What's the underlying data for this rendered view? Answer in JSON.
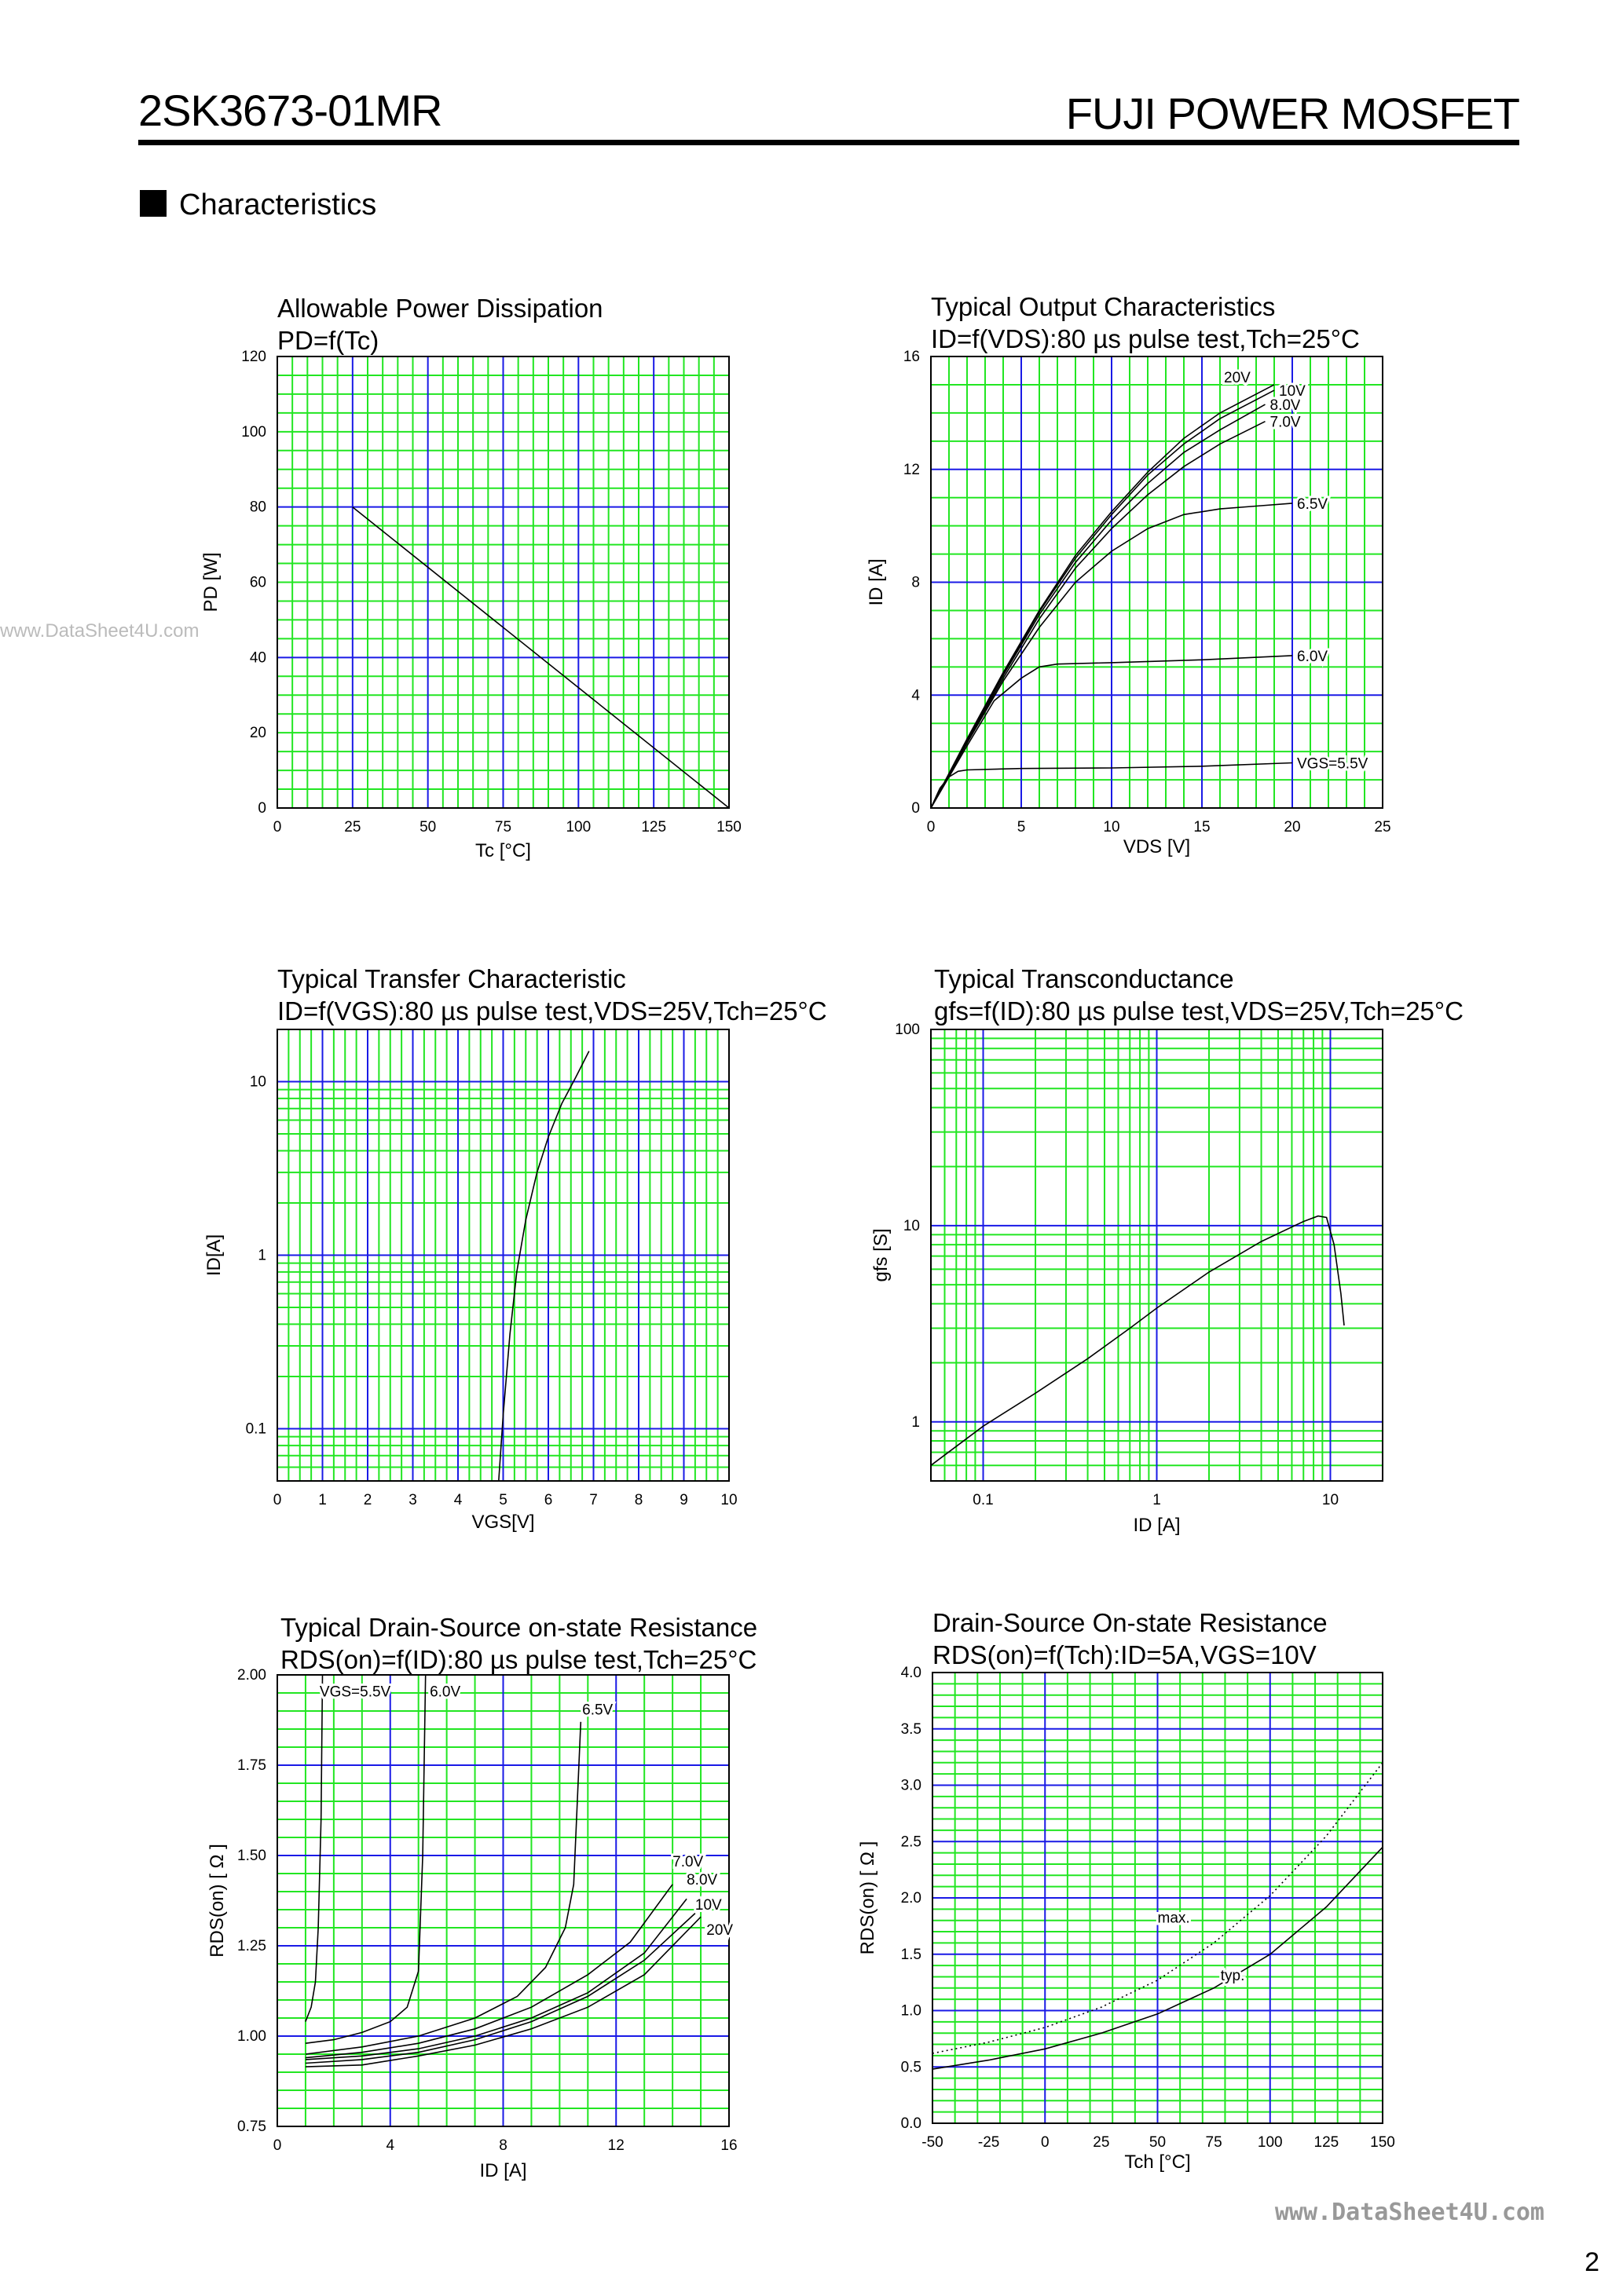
{
  "header": {
    "part_number": "2SK3673-01MR",
    "brand": "FUJI POWER MOSFET"
  },
  "section": {
    "title": "Characteristics"
  },
  "watermarks": {
    "left": "www.DataSheet4U.com",
    "bottom": "www.DataSheet4U.com"
  },
  "page_number": "2",
  "chart_data": [
    {
      "type": "line",
      "title": "Allowable Power Dissipation",
      "subtitle": "PD=f(Tc)",
      "xlabel": "Tc [°C]",
      "ylabel": "PD [W]",
      "xlim": [
        0,
        150
      ],
      "ylim": [
        0,
        120
      ],
      "xscale": "linear",
      "yscale": "linear",
      "grid": true,
      "xticks": [
        "0",
        "25",
        "50",
        "75",
        "100",
        "125",
        "150"
      ],
      "xtick_values": [
        0,
        25,
        50,
        75,
        100,
        125,
        150
      ],
      "yticks": [
        "0",
        "20",
        "40",
        "60",
        "80",
        "100",
        "120"
      ],
      "ytick_values": [
        0,
        20,
        40,
        60,
        80,
        100,
        120
      ],
      "series": [
        {
          "points": [
            [
              25,
              80
            ],
            [
              150,
              0
            ]
          ]
        }
      ]
    },
    {
      "type": "line",
      "title": "Typical Output Characteristics",
      "subtitle": "ID=f(VDS):80 µs pulse test,Tch=25°C",
      "xlabel": "VDS [V]",
      "ylabel": "ID [A]",
      "xlim": [
        0,
        25
      ],
      "ylim": [
        0,
        16
      ],
      "xscale": "linear",
      "yscale": "linear",
      "grid": true,
      "xticks": [
        "0",
        "5",
        "10",
        "15",
        "20",
        "25"
      ],
      "xtick_values": [
        0,
        5,
        10,
        15,
        20,
        25
      ],
      "yticks": [
        "0",
        "4",
        "8",
        "12",
        "16"
      ],
      "ytick_values": [
        0,
        4,
        8,
        12,
        16
      ],
      "series": [
        {
          "name": "VGS=5.5V",
          "points": [
            [
              0,
              0
            ],
            [
              0.5,
              0.7
            ],
            [
              1,
              1.1
            ],
            [
              1.5,
              1.3
            ],
            [
              2,
              1.35
            ],
            [
              5,
              1.4
            ],
            [
              10,
              1.42
            ],
            [
              15,
              1.48
            ],
            [
              20,
              1.6
            ]
          ]
        },
        {
          "name": "6.0V",
          "points": [
            [
              0,
              0
            ],
            [
              2,
              2.2
            ],
            [
              3.5,
              3.8
            ],
            [
              5,
              4.6
            ],
            [
              6,
              5.0
            ],
            [
              7,
              5.1
            ],
            [
              10,
              5.15
            ],
            [
              15,
              5.25
            ],
            [
              20,
              5.4
            ]
          ]
        },
        {
          "name": "6.5V",
          "points": [
            [
              0,
              0
            ],
            [
              2,
              2.3
            ],
            [
              4,
              4.5
            ],
            [
              6,
              6.4
            ],
            [
              8,
              8.0
            ],
            [
              10,
              9.1
            ],
            [
              12,
              9.9
            ],
            [
              14,
              10.4
            ],
            [
              16,
              10.6
            ],
            [
              18,
              10.7
            ],
            [
              20,
              10.8
            ]
          ]
        },
        {
          "name": "7.0V",
          "points": [
            [
              0,
              0
            ],
            [
              2,
              2.35
            ],
            [
              4,
              4.6
            ],
            [
              6,
              6.7
            ],
            [
              8,
              8.5
            ],
            [
              10,
              9.9
            ],
            [
              12,
              11.1
            ],
            [
              14,
              12.1
            ],
            [
              16,
              12.9
            ],
            [
              18.5,
              13.7
            ]
          ]
        },
        {
          "name": "8.0V",
          "points": [
            [
              0,
              0
            ],
            [
              2,
              2.4
            ],
            [
              4,
              4.7
            ],
            [
              6,
              6.85
            ],
            [
              8,
              8.7
            ],
            [
              10,
              10.2
            ],
            [
              12,
              11.5
            ],
            [
              14,
              12.6
            ],
            [
              16,
              13.4
            ],
            [
              18.5,
              14.3
            ]
          ]
        },
        {
          "name": "10V",
          "points": [
            [
              0,
              0
            ],
            [
              2,
              2.4
            ],
            [
              4,
              4.75
            ],
            [
              6,
              6.95
            ],
            [
              8,
              8.85
            ],
            [
              10,
              10.4
            ],
            [
              12,
              11.8
            ],
            [
              14,
              12.9
            ],
            [
              16,
              13.8
            ],
            [
              19,
              14.8
            ]
          ]
        },
        {
          "name": "20V",
          "points": [
            [
              0,
              0
            ],
            [
              2,
              2.45
            ],
            [
              4,
              4.8
            ],
            [
              6,
              7.0
            ],
            [
              8,
              8.95
            ],
            [
              10,
              10.5
            ],
            [
              12,
              11.9
            ],
            [
              14,
              13.1
            ],
            [
              16,
              14.0
            ],
            [
              19,
              15.0
            ]
          ]
        }
      ]
    },
    {
      "type": "line",
      "title": "Typical Transfer Characteristic",
      "subtitle": "ID=f(VGS):80 µs pulse test,VDS=25V,Tch=25°C",
      "xlabel": "VGS[V]",
      "ylabel": "ID[A]",
      "xlim": [
        0,
        10
      ],
      "ylim": [
        0.05,
        20
      ],
      "xscale": "linear",
      "yscale": "log",
      "grid": true,
      "xticks": [
        "0",
        "1",
        "2",
        "3",
        "4",
        "5",
        "6",
        "7",
        "8",
        "9",
        "10"
      ],
      "xtick_values": [
        0,
        1,
        2,
        3,
        4,
        5,
        6,
        7,
        8,
        9,
        10
      ],
      "yticks": [
        "0.1",
        "1",
        "10"
      ],
      "ytick_values": [
        0.1,
        1,
        10
      ],
      "series": [
        {
          "points": [
            [
              4.9,
              0.05
            ],
            [
              5.0,
              0.12
            ],
            [
              5.15,
              0.35
            ],
            [
              5.3,
              0.8
            ],
            [
              5.5,
              1.6
            ],
            [
              5.75,
              3
            ],
            [
              6.0,
              4.8
            ],
            [
              6.3,
              7.5
            ],
            [
              6.6,
              10.5
            ],
            [
              6.9,
              15
            ]
          ]
        }
      ]
    },
    {
      "type": "line",
      "title": "Typical Transconductance",
      "subtitle": "gfs=f(ID):80 µs pulse test,VDS=25V,Tch=25°C",
      "xlabel": "ID [A]",
      "ylabel": "gfs [S]",
      "xlim": [
        0.05,
        20
      ],
      "ylim": [
        0.5,
        100
      ],
      "xscale": "log",
      "yscale": "log",
      "grid": true,
      "xticks": [
        "0.1",
        "1",
        "10"
      ],
      "xtick_values": [
        0.1,
        1,
        10
      ],
      "yticks": [
        "1",
        "10",
        "100"
      ],
      "ytick_values": [
        1,
        10,
        100
      ],
      "series": [
        {
          "points": [
            [
              0.05,
              0.6
            ],
            [
              0.1,
              0.95
            ],
            [
              0.2,
              1.4
            ],
            [
              0.4,
              2.1
            ],
            [
              0.7,
              3.0
            ],
            [
              1,
              3.8
            ],
            [
              2,
              5.8
            ],
            [
              4,
              8.3
            ],
            [
              7,
              10.5
            ],
            [
              8.5,
              11.2
            ],
            [
              9.5,
              11.0
            ],
            [
              10.5,
              8
            ],
            [
              11.5,
              4.5
            ],
            [
              12,
              3.1
            ]
          ]
        }
      ]
    },
    {
      "type": "line",
      "title": "Typical Drain-Source on-state Resistance",
      "subtitle": "RDS(on)=f(ID):80  µs pulse test,Tch=25°C",
      "xlabel": "ID [A]",
      "ylabel": "RDS(on) [ Ω ]",
      "xlim": [
        0,
        16
      ],
      "ylim": [
        0.75,
        2.0
      ],
      "xscale": "linear",
      "yscale": "linear",
      "grid": true,
      "xticks": [
        "0",
        "4",
        "8",
        "12",
        "16"
      ],
      "xtick_values": [
        0,
        4,
        8,
        12,
        16
      ],
      "yticks": [
        "0.75",
        "1.00",
        "1.25",
        "1.50",
        "1.75",
        "2.00"
      ],
      "ytick_values": [
        0.75,
        1.0,
        1.25,
        1.5,
        1.75,
        2.0
      ],
      "series": [
        {
          "name": "VGS=5.5V",
          "label_at": [
            1.5,
            1.94
          ],
          "points": [
            [
              1.0,
              1.04
            ],
            [
              1.2,
              1.08
            ],
            [
              1.35,
              1.15
            ],
            [
              1.45,
              1.3
            ],
            [
              1.55,
              1.6
            ],
            [
              1.6,
              2.0
            ]
          ]
        },
        {
          "name": "6.0V",
          "label_at": [
            5.4,
            1.94
          ],
          "points": [
            [
              1.0,
              0.98
            ],
            [
              2.0,
              0.99
            ],
            [
              3.0,
              1.01
            ],
            [
              4.0,
              1.04
            ],
            [
              4.6,
              1.08
            ],
            [
              5.0,
              1.18
            ],
            [
              5.15,
              1.5
            ],
            [
              5.25,
              2.0
            ]
          ]
        },
        {
          "name": "6.5V",
          "label_at": [
            10.8,
            1.89
          ],
          "points": [
            [
              1.0,
              0.95
            ],
            [
              3,
              0.97
            ],
            [
              5,
              1.0
            ],
            [
              7,
              1.05
            ],
            [
              8.5,
              1.11
            ],
            [
              9.5,
              1.19
            ],
            [
              10.2,
              1.3
            ],
            [
              10.5,
              1.42
            ],
            [
              10.6,
              1.6
            ],
            [
              10.75,
              1.87
            ]
          ]
        },
        {
          "name": "7.0V",
          "label_at": [
            14.0,
            1.47
          ],
          "points": [
            [
              1.0,
              0.94
            ],
            [
              3,
              0.955
            ],
            [
              5,
              0.98
            ],
            [
              7,
              1.02
            ],
            [
              9,
              1.08
            ],
            [
              11,
              1.17
            ],
            [
              12.5,
              1.26
            ],
            [
              14,
              1.42
            ]
          ]
        },
        {
          "name": "8.0V",
          "label_at": [
            14.5,
            1.42
          ],
          "points": [
            [
              1.0,
              0.935
            ],
            [
              3,
              0.945
            ],
            [
              5,
              0.965
            ],
            [
              7,
              1.0
            ],
            [
              9,
              1.05
            ],
            [
              11,
              1.12
            ],
            [
              13,
              1.23
            ],
            [
              14.5,
              1.38
            ]
          ]
        },
        {
          "name": "10V",
          "label_at": [
            14.8,
            1.35
          ],
          "points": [
            [
              1.0,
              0.925
            ],
            [
              3,
              0.935
            ],
            [
              5,
              0.955
            ],
            [
              7,
              0.99
            ],
            [
              9,
              1.04
            ],
            [
              11,
              1.11
            ],
            [
              13,
              1.21
            ],
            [
              14.8,
              1.34
            ]
          ]
        },
        {
          "name": "20V",
          "label_at": [
            15.2,
            1.28
          ],
          "points": [
            [
              1.0,
              0.915
            ],
            [
              3,
              0.92
            ],
            [
              5,
              0.945
            ],
            [
              7,
              0.975
            ],
            [
              9,
              1.02
            ],
            [
              11,
              1.08
            ],
            [
              13,
              1.17
            ],
            [
              15,
              1.33
            ]
          ]
        }
      ]
    },
    {
      "type": "line",
      "title": "Drain-Source On-state Resistance",
      "subtitle": "RDS(on)=f(Tch):ID=5A,VGS=10V",
      "xlabel": "Tch [°C]",
      "ylabel": "RDS(on) [ Ω ]",
      "xlim": [
        -50,
        150
      ],
      "ylim": [
        0,
        4.0
      ],
      "xscale": "linear",
      "yscale": "linear",
      "grid": true,
      "xticks": [
        "-50",
        "-25",
        "0",
        "25",
        "50",
        "75",
        "100",
        "125",
        "150"
      ],
      "xtick_values": [
        -50,
        -25,
        0,
        25,
        50,
        75,
        100,
        125,
        150
      ],
      "yticks": [
        "0.0",
        "0.5",
        "1.0",
        "1.5",
        "2.0",
        "2.5",
        "3.0",
        "3.5",
        "4.0"
      ],
      "ytick_values": [
        0,
        0.5,
        1,
        1.5,
        2,
        2.5,
        3,
        3.5,
        4
      ],
      "series": [
        {
          "name": "max.",
          "style": "dotted",
          "label_at": [
            50,
            1.78
          ],
          "points": [
            [
              -50,
              0.62
            ],
            [
              -25,
              0.72
            ],
            [
              0,
              0.85
            ],
            [
              25,
              1.03
            ],
            [
              50,
              1.27
            ],
            [
              75,
              1.6
            ],
            [
              100,
              2.02
            ],
            [
              125,
              2.55
            ],
            [
              150,
              3.2
            ]
          ]
        },
        {
          "name": "typ.",
          "style": "solid",
          "label_at": [
            78,
            1.27
          ],
          "points": [
            [
              -50,
              0.48
            ],
            [
              -25,
              0.56
            ],
            [
              0,
              0.66
            ],
            [
              25,
              0.8
            ],
            [
              50,
              0.97
            ],
            [
              75,
              1.2
            ],
            [
              100,
              1.5
            ],
            [
              125,
              1.92
            ],
            [
              150,
              2.45
            ]
          ]
        }
      ]
    }
  ]
}
